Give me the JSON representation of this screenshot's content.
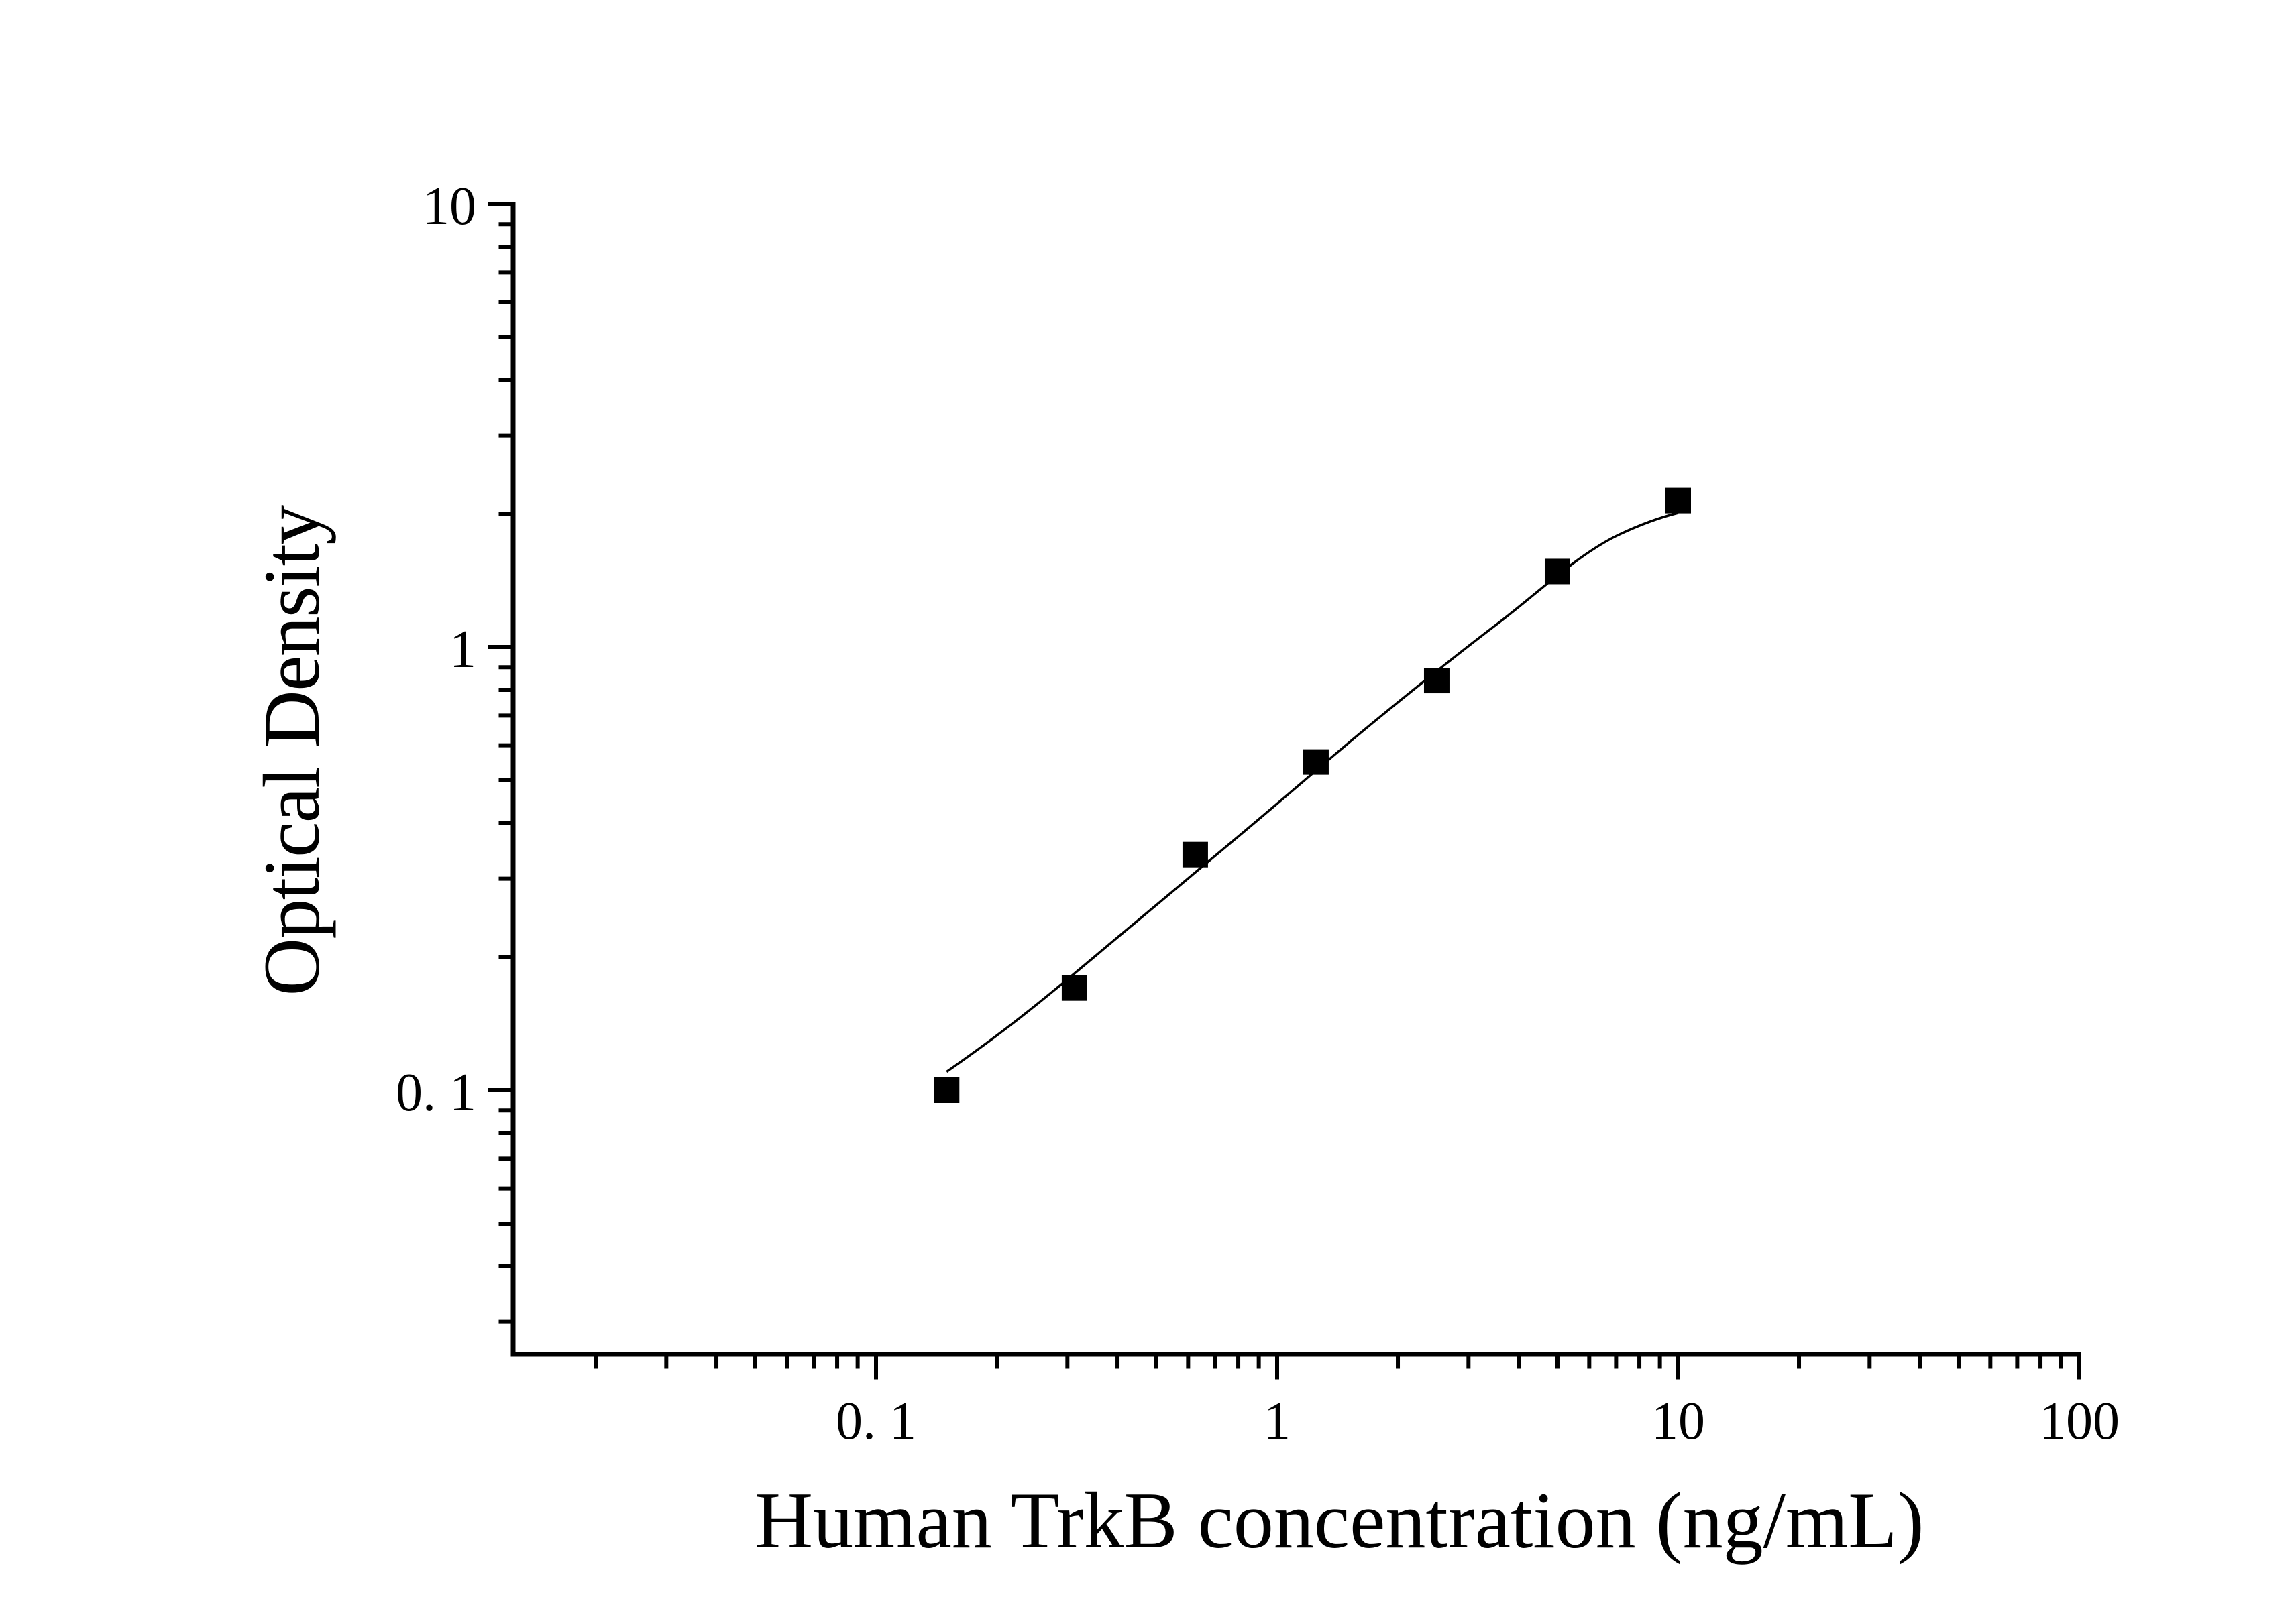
{
  "figure": {
    "background_color": "#ffffff",
    "ink_color": "#000000"
  },
  "chart_data": {
    "type": "scatter",
    "title": "",
    "xlabel": "Human TrkB concentration (ng/mL)",
    "ylabel": "Optical Density",
    "x_scale": "log",
    "y_scale": "log",
    "xlim": [
      0.0124,
      101
    ],
    "ylim": [
      0.0253,
      10
    ],
    "grid": false,
    "legend_position": "none",
    "x_major_ticks": [
      0.1,
      1,
      10,
      100
    ],
    "x_major_tick_labels": [
      "0. 1",
      "1",
      "10",
      "100"
    ],
    "y_major_ticks": [
      10,
      1,
      0.1
    ],
    "y_major_tick_labels": [
      "10",
      "1",
      "0. 1"
    ],
    "series": [
      {
        "name": "standard points",
        "kind": "scatter",
        "marker": "filled-square",
        "color": "#000000",
        "x": [
          0.15,
          0.3125,
          0.625,
          1.25,
          2.5,
          5,
          10
        ],
        "y": [
          0.1,
          0.17,
          0.34,
          0.55,
          0.84,
          1.48,
          2.14
        ]
      },
      {
        "name": "fitted curve",
        "kind": "line",
        "color": "#000000",
        "x": [
          0.15,
          0.216,
          0.441,
          0.884,
          1.772,
          3.551,
          7.145,
          10
        ],
        "y": [
          0.11,
          0.14,
          0.238,
          0.403,
          0.686,
          1.13,
          1.796,
          2.007
        ]
      }
    ]
  }
}
